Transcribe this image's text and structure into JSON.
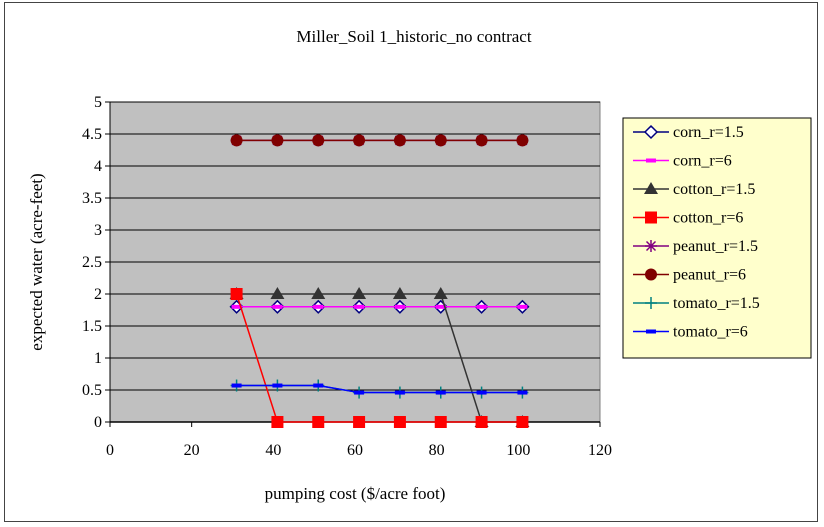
{
  "chart_data": {
    "type": "line",
    "title": "Miller_Soil 1_historic_no contract",
    "xlabel": "pumping cost ($/acre foot)",
    "ylabel": "expected water (acre-feet)",
    "xlim": [
      0,
      120
    ],
    "ylim": [
      0,
      5
    ],
    "xticks": [
      "0",
      "20",
      "40",
      "60",
      "80",
      "100",
      "120"
    ],
    "yticks": [
      "0",
      "0.5",
      "1",
      "1.5",
      "2",
      "2.5",
      "3",
      "3.5",
      "4",
      "4.5",
      "5"
    ],
    "grid": true,
    "legend_position": "right",
    "plot_background": "#c0c0c0",
    "x": [
      31,
      41,
      51,
      61,
      71,
      81,
      91,
      101
    ],
    "series": [
      {
        "name": "corn_r=1.5",
        "color": "#000080",
        "marker": "diamond-open",
        "values": [
          1.8,
          1.8,
          1.8,
          1.8,
          1.8,
          1.8,
          1.8,
          1.8
        ]
      },
      {
        "name": "corn_r=6",
        "color": "#ff00ff",
        "marker": "dash",
        "values": [
          1.8,
          1.8,
          1.8,
          1.8,
          1.8,
          1.8,
          1.8,
          1.8
        ]
      },
      {
        "name": "cotton_r=1.5",
        "color": "#333333",
        "marker": "triangle",
        "values": [
          2.0,
          2.0,
          2.0,
          2.0,
          2.0,
          2.0,
          0.0,
          0.0
        ]
      },
      {
        "name": "cotton_r=6",
        "color": "#ff0000",
        "marker": "square",
        "values": [
          2.0,
          0.0,
          0.0,
          0.0,
          0.0,
          0.0,
          0.0,
          0.0
        ]
      },
      {
        "name": "peanut_r=1.5",
        "color": "#800080",
        "marker": "asterisk",
        "values": [
          4.4,
          4.4,
          4.4,
          4.4,
          4.4,
          4.4,
          4.4,
          4.4
        ]
      },
      {
        "name": "peanut_r=6",
        "color": "#800000",
        "marker": "circle",
        "values": [
          4.4,
          4.4,
          4.4,
          4.4,
          4.4,
          4.4,
          4.4,
          4.4
        ]
      },
      {
        "name": "tomato_r=1.5",
        "color": "#008080",
        "marker": "plus",
        "values": [
          0.57,
          0.57,
          0.57,
          0.46,
          0.46,
          0.46,
          0.46,
          0.46
        ]
      },
      {
        "name": "tomato_r=6",
        "color": "#0000ff",
        "marker": "dash",
        "values": [
          0.57,
          0.57,
          0.57,
          0.46,
          0.46,
          0.46,
          0.46,
          0.46
        ]
      }
    ]
  }
}
